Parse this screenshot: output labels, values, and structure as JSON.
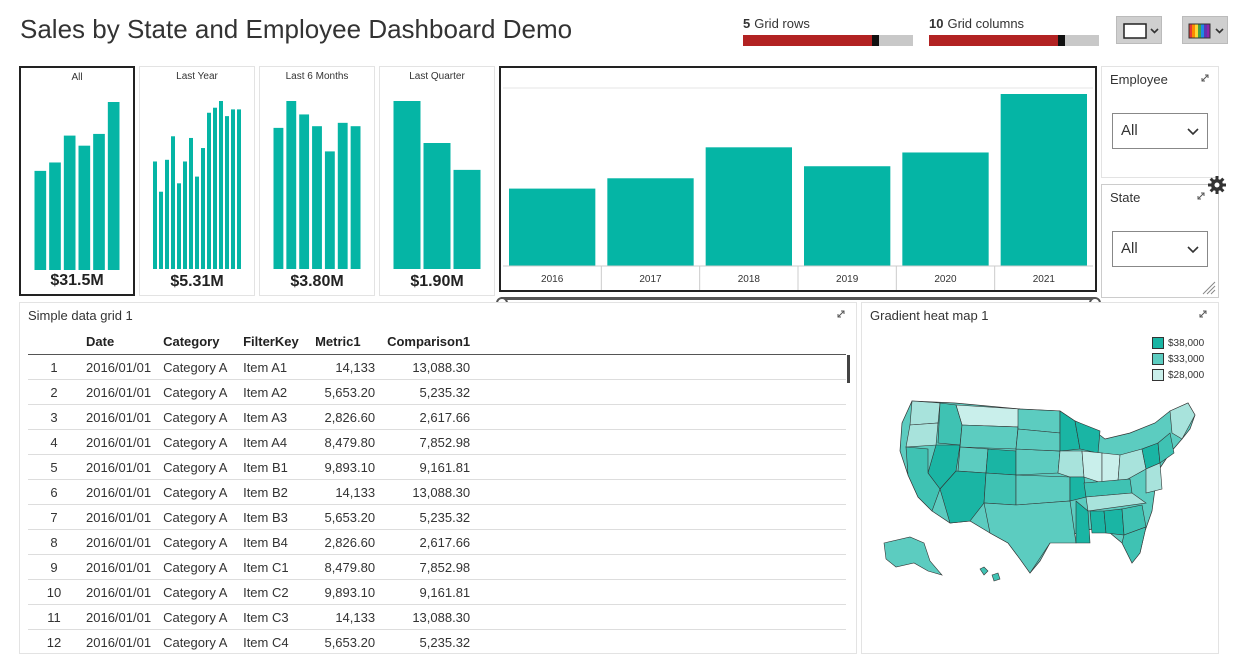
{
  "app": {
    "title": "Sales by State and Employee Dashboard Demo"
  },
  "controls": {
    "grid_rows": {
      "value": "5",
      "label": "Grid rows",
      "fill_fraction": 0.76
    },
    "grid_columns": {
      "value": "10",
      "label": "Grid columns",
      "fill_fraction": 0.76
    },
    "border_button_icon": "rectangle-outline-icon",
    "palette_button_icon": "color-palette-icon"
  },
  "kpis": [
    {
      "label": "All",
      "value": "$31.5M",
      "bars": [
        0.59,
        0.64,
        0.8,
        0.74,
        0.81,
        1.0
      ]
    },
    {
      "label": "Last Year",
      "value": "$5.31M",
      "bars": [
        0.64,
        0.46,
        0.65,
        0.79,
        0.51,
        0.64,
        0.78,
        0.55,
        0.72,
        0.93,
        0.96,
        1.0,
        0.91,
        0.95,
        0.95
      ]
    },
    {
      "label": "Last 6 Months",
      "value": "$3.80M",
      "bars": [
        0.84,
        1.0,
        0.92,
        0.85,
        0.7,
        0.87,
        0.85
      ]
    },
    {
      "label": "Last Quarter",
      "value": "$1.90M",
      "bars": [
        1.0,
        0.75,
        0.59
      ]
    }
  ],
  "year_chart": {
    "categories": [
      "2016",
      "2017",
      "2018",
      "2019",
      "2020",
      "2021"
    ],
    "values": [
      0.45,
      0.51,
      0.69,
      0.58,
      0.66,
      1.0
    ]
  },
  "filters": {
    "employee": {
      "title": "Employee",
      "value": "All"
    },
    "state": {
      "title": "State",
      "value": "All"
    }
  },
  "grid": {
    "title": "Simple data grid 1",
    "columns": [
      "",
      "Date",
      "Category",
      "FilterKey",
      "Metric1",
      "Comparison1"
    ],
    "rows": [
      [
        "1",
        "2016/01/01",
        "Category A",
        "Item A1",
        "14,133",
        "13,088.30"
      ],
      [
        "2",
        "2016/01/01",
        "Category A",
        "Item A2",
        "5,653.20",
        "5,235.32"
      ],
      [
        "3",
        "2016/01/01",
        "Category A",
        "Item A3",
        "2,826.60",
        "2,617.66"
      ],
      [
        "4",
        "2016/01/01",
        "Category A",
        "Item A4",
        "8,479.80",
        "7,852.98"
      ],
      [
        "5",
        "2016/01/01",
        "Category A",
        "Item B1",
        "9,893.10",
        "9,161.81"
      ],
      [
        "6",
        "2016/01/01",
        "Category A",
        "Item B2",
        "14,133",
        "13,088.30"
      ],
      [
        "7",
        "2016/01/01",
        "Category A",
        "Item B3",
        "5,653.20",
        "5,235.32"
      ],
      [
        "8",
        "2016/01/01",
        "Category A",
        "Item B4",
        "2,826.60",
        "2,617.66"
      ],
      [
        "9",
        "2016/01/01",
        "Category A",
        "Item C1",
        "8,479.80",
        "7,852.98"
      ],
      [
        "10",
        "2016/01/01",
        "Category A",
        "Item C2",
        "9,893.10",
        "9,161.81"
      ],
      [
        "11",
        "2016/01/01",
        "Category A",
        "Item C3",
        "14,133",
        "13,088.30"
      ],
      [
        "12",
        "2016/01/01",
        "Category A",
        "Item C4",
        "5,653.20",
        "5,235.32"
      ]
    ]
  },
  "heatmap": {
    "title": "Gradient heat map 1",
    "legend": [
      {
        "label": "$38,000",
        "color": "#1ab5a4"
      },
      {
        "label": "$33,000",
        "color": "#5cccc0"
      },
      {
        "label": "$28,000",
        "color": "#c9efeb"
      }
    ]
  },
  "colors": {
    "accent": "#05b5a5",
    "slider_fill": "#b22222"
  }
}
